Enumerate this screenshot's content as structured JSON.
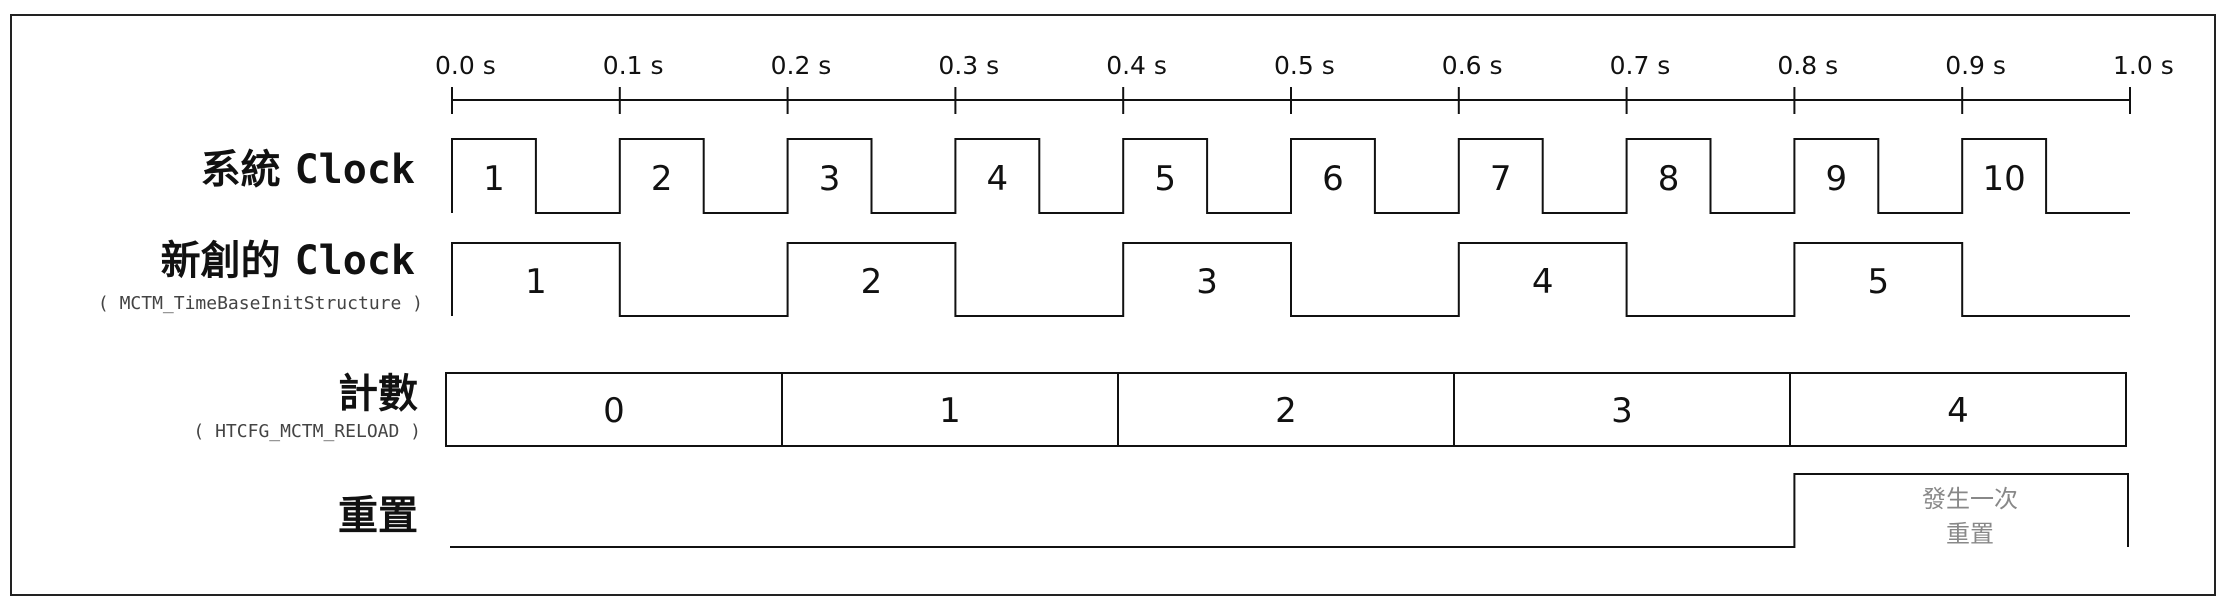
{
  "timeline": {
    "ticks": [
      "0.0 s",
      "0.1 s",
      "0.2 s",
      "0.3 s",
      "0.4 s",
      "0.5 s",
      "0.6 s",
      "0.7 s",
      "0.8 s",
      "0.9 s",
      "1.0 s"
    ]
  },
  "signals": {
    "system_clock": {
      "label_cjk": "系統",
      "label_latin": "Clock",
      "pulse_labels": [
        "1",
        "2",
        "3",
        "4",
        "5",
        "6",
        "7",
        "8",
        "9",
        "10"
      ]
    },
    "new_clock": {
      "label_cjk": "新創的",
      "label_latin": "Clock",
      "sublabel": "( MCTM_TimeBaseInitStructure )",
      "pulse_labels": [
        "1",
        "2",
        "3",
        "4",
        "5"
      ]
    },
    "counter": {
      "label": "計數",
      "sublabel": "( HTCFG_MCTM_RELOAD )",
      "segments": [
        "0",
        "1",
        "2",
        "3",
        "4"
      ]
    },
    "reset": {
      "label": "重置",
      "note_line1": "發生一次",
      "note_line2": "重置"
    }
  }
}
